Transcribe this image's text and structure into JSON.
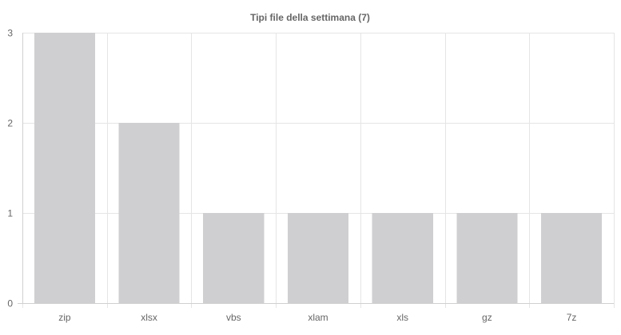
{
  "chart_data": {
    "type": "bar",
    "title": "Tipi file della settimana (7)",
    "xlabel": "",
    "ylabel": "",
    "categories": [
      "zip",
      "xlsx",
      "vbs",
      "xlam",
      "xls",
      "gz",
      "7z"
    ],
    "values": [
      3,
      2,
      1,
      1,
      1,
      1,
      1
    ],
    "ylim": [
      0,
      3
    ],
    "yticks": [
      0,
      1,
      2,
      3
    ],
    "grid": true,
    "legend": "none",
    "bar_color": "#cfcfd1"
  }
}
